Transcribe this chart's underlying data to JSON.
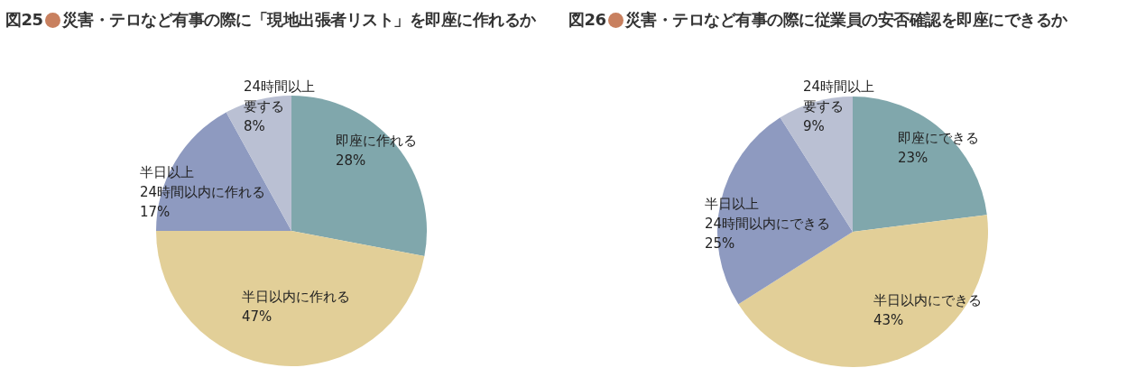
{
  "chart_data": [
    {
      "type": "pie",
      "annotations": [
        "図25"
      ],
      "title": "災害・テロなど有事の際に「現地出張者リスト」を即座に作れるか",
      "categories": [
        "即座に作れる",
        "半日以内に作れる",
        "半日以上24時間以内に作れる",
        "24時間以上要する"
      ],
      "values": [
        28,
        47,
        17,
        8
      ],
      "value_labels": [
        "28%",
        "47%",
        "17%",
        "8%"
      ],
      "colors": [
        "#80a7ac",
        "#e2cf98",
        "#8e9ac0",
        "#bac0d3"
      ]
    },
    {
      "type": "pie",
      "annotations": [
        "図26"
      ],
      "title": "災害・テロなど有事の際に従業員の安否確認を即座にできるか",
      "categories": [
        "即座にできる",
        "半日以内にできる",
        "半日以上24時間以内にできる",
        "24時間以上要する"
      ],
      "values": [
        23,
        43,
        25,
        9
      ],
      "value_labels": [
        "23%",
        "43%",
        "25%",
        "9%"
      ],
      "colors": [
        "#80a7ac",
        "#e2cf98",
        "#8e9ac0",
        "#bac0d3"
      ]
    }
  ]
}
